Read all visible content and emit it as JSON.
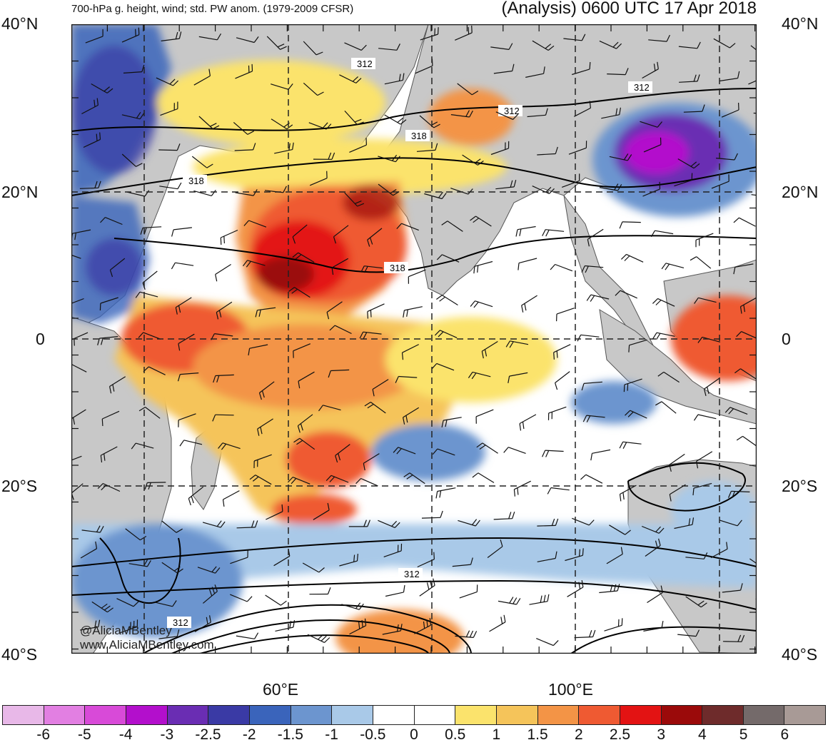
{
  "header": {
    "left_title": "700-hPa g. height, wind; std. PW anom. (1979-2009 CFSR)",
    "right_title": "(Analysis) 0600 UTC 17 Apr 2018"
  },
  "map": {
    "lat_labels": [
      "40°N",
      "20°N",
      "0",
      "20°S",
      "40°S"
    ],
    "lon_labels": [
      "60°E",
      "100°E"
    ],
    "contour_labels": [
      "312",
      "312",
      "312",
      "318",
      "318",
      "318",
      "312",
      "312"
    ],
    "credits": [
      "@AliciaMBentley",
      "www.AliciaMBentley.com"
    ]
  },
  "legend": {
    "tick_labels": [
      "-6",
      "-5",
      "-4",
      "-3",
      "-2.5",
      "-2",
      "-1.5",
      "-1",
      "-0.5",
      "0",
      "0.5",
      "1",
      "1.5",
      "2",
      "2.5",
      "3",
      "4",
      "5",
      "6"
    ],
    "colors": [
      "#e8b8e8",
      "#e27fe2",
      "#d84ad8",
      "#b30fcc",
      "#6a2db3",
      "#3a3aa5",
      "#3a64bb",
      "#6c95cf",
      "#a9c9e8",
      "#ffffff",
      "#ffffff",
      "#fbe36c",
      "#f5c45a",
      "#f39446",
      "#ef5a32",
      "#e31313",
      "#9b0a0a",
      "#6e2b2b",
      "#746a6a",
      "#a89a96"
    ]
  },
  "palette": {
    "land": "#c8c8c8",
    "ocean": "#ffffff",
    "grid": "#222222",
    "contour": "#000000"
  }
}
